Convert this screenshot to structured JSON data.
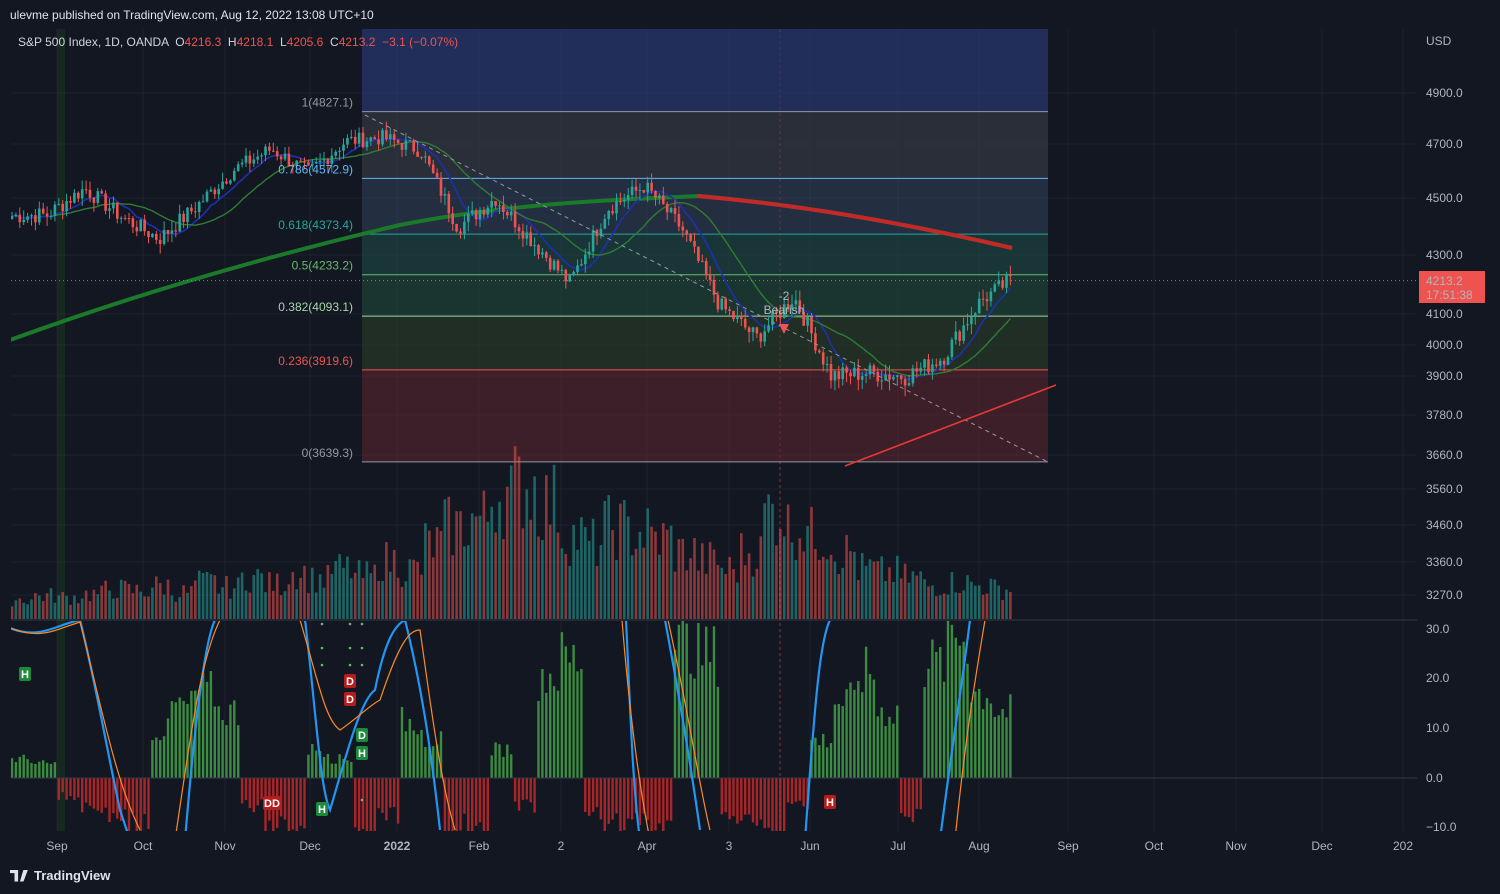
{
  "header": {
    "publish_text": "ulevme published on TradingView.com, Aug 12, 2022 13:08 UTC+10"
  },
  "legend": {
    "symbol": "S&P 500 Index, 1D, OANDA",
    "o_label": "O",
    "o_value": "4216.3",
    "h_label": "H",
    "h_value": "4218.1",
    "l_label": "L",
    "l_value": "4205.6",
    "c_label": "C",
    "c_value": "4213.2",
    "change": "−3.1 (−0.07%)"
  },
  "price_badge": {
    "price": "4213.2",
    "countdown": "17:51:38"
  },
  "footer": {
    "brand": "TradingView"
  },
  "annotations": {
    "bearish_count": "-2",
    "bearish_label": "Bearish"
  },
  "colors": {
    "up": "#26a69a",
    "down": "#ef5350",
    "ma_short": "#1e2fb0",
    "ma_mid": "#c62828",
    "ma_long": "#1b7a2a",
    "osc_line": "#2196f3",
    "osc_signal": "#ff8a1f"
  },
  "chart_data": [
    {
      "type": "line",
      "title": "S&P 500 Index, 1D, OANDA",
      "price_axis": {
        "unit": "USD",
        "ticks": [
          "4900.0",
          "4700.0",
          "4500.0",
          "4300.0",
          "4100.0",
          "4000.0",
          "3900.0",
          "3780.0",
          "3660.0",
          "3560.0",
          "3460.0",
          "3360.0",
          "3270.0"
        ]
      },
      "time_axis": {
        "ticks": [
          "Sep",
          "Oct",
          "Nov",
          "Dec",
          "2022",
          "Feb",
          "2",
          "Apr",
          "3",
          "Jun",
          "Jul",
          "Aug",
          "Sep",
          "Oct",
          "Nov",
          "Dec",
          "202"
        ]
      },
      "fibonacci": [
        {
          "level": "1",
          "price": 4827.1
        },
        {
          "level": "0.786",
          "price": 4572.9
        },
        {
          "level": "0.618",
          "price": 4373.4
        },
        {
          "level": "0.5",
          "price": 4233.2
        },
        {
          "level": "0.382",
          "price": 4093.1
        },
        {
          "level": "0.236",
          "price": 3919.6
        },
        {
          "level": "0",
          "price": 3639.3
        }
      ],
      "fib_labels": [
        "1(4827.1)",
        "0.786(4572.9)",
        "0.618(4373.4)",
        "0.5(4233.2)",
        "0.382(4093.1)",
        "0.236(3919.6)",
        "0(3639.3)"
      ],
      "closes_weekly": [
        {
          "date": "2021-08-02",
          "close": 4437
        },
        {
          "date": "2021-08-16",
          "close": 4441
        },
        {
          "date": "2021-08-30",
          "close": 4535
        },
        {
          "date": "2021-09-13",
          "close": 4433
        },
        {
          "date": "2021-09-27",
          "close": 4357
        },
        {
          "date": "2021-10-11",
          "close": 4471
        },
        {
          "date": "2021-10-25",
          "close": 4605
        },
        {
          "date": "2021-11-08",
          "close": 4682
        },
        {
          "date": "2021-11-22",
          "close": 4594
        },
        {
          "date": "2021-12-06",
          "close": 4712
        },
        {
          "date": "2021-12-20",
          "close": 4725
        },
        {
          "date": "2022-01-03",
          "close": 4677
        },
        {
          "date": "2022-01-17",
          "close": 4397
        },
        {
          "date": "2022-01-31",
          "close": 4500
        },
        {
          "date": "2022-02-14",
          "close": 4348
        },
        {
          "date": "2022-02-28",
          "close": 4204
        },
        {
          "date": "2022-03-14",
          "close": 4463
        },
        {
          "date": "2022-03-28",
          "close": 4545
        },
        {
          "date": "2022-04-11",
          "close": 4392
        },
        {
          "date": "2022-04-25",
          "close": 4131
        },
        {
          "date": "2022-05-09",
          "close": 4023
        },
        {
          "date": "2022-05-23",
          "close": 4158
        },
        {
          "date": "2022-06-06",
          "close": 3900
        },
        {
          "date": "2022-06-20",
          "close": 3911
        },
        {
          "date": "2022-07-04",
          "close": 3899
        },
        {
          "date": "2022-07-18",
          "close": 3961
        },
        {
          "date": "2022-08-01",
          "close": 4145
        },
        {
          "date": "2022-08-12",
          "close": 4213
        }
      ]
    },
    {
      "type": "bar",
      "title": "Volume",
      "values": [
        12,
        14,
        13,
        15,
        18,
        17,
        20,
        16,
        22,
        19,
        25,
        21,
        28,
        24,
        30,
        26,
        35,
        30,
        45,
        55,
        60,
        75,
        80,
        70,
        50,
        45,
        55,
        52,
        48,
        40,
        35,
        30,
        40,
        65,
        55,
        50,
        40,
        30,
        28,
        25,
        20,
        22,
        20,
        18
      ]
    },
    {
      "type": "bar",
      "title": "Oscillator",
      "y_ticks": [
        "30.0",
        "20.0",
        "10.0",
        "0.0",
        "−10.0"
      ],
      "values": [
        4,
        3,
        -4,
        -6,
        -8,
        -10,
        10,
        15,
        18,
        14,
        -6,
        -10,
        -12,
        6,
        4,
        -12,
        -8,
        12,
        8,
        -10,
        -12,
        6,
        -6,
        22,
        25,
        -8,
        -10,
        -8,
        -12,
        28,
        26,
        -8,
        -10,
        -12,
        -6,
        8,
        16,
        22,
        14,
        -8,
        24,
        30,
        18,
        14
      ]
    }
  ],
  "markers": [
    {
      "label": "H",
      "kind": "bull"
    },
    {
      "label": "D",
      "kind": "bear"
    },
    {
      "label": "D",
      "kind": "bear"
    },
    {
      "label": "D",
      "kind": "bull"
    },
    {
      "label": "H",
      "kind": "bull"
    },
    {
      "label": "DD",
      "kind": "bear"
    },
    {
      "label": "H",
      "kind": "bull"
    },
    {
      "label": "H",
      "kind": "bear"
    }
  ]
}
